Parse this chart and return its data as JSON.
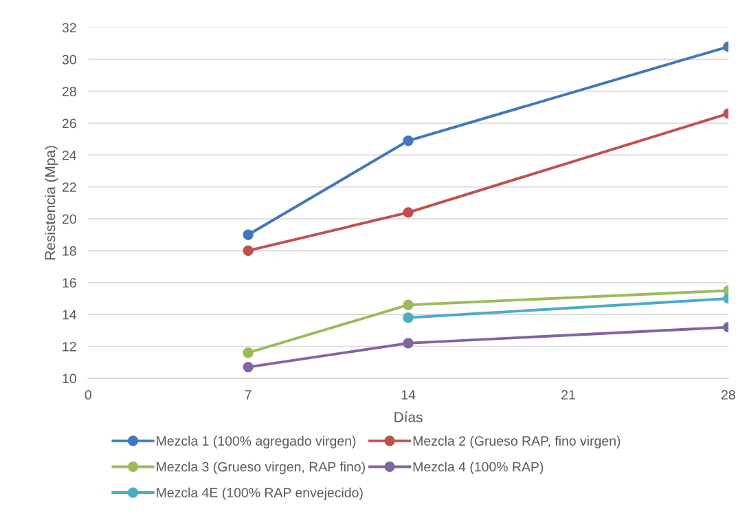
{
  "chart_data": {
    "type": "line",
    "xlabel": "Días",
    "ylabel": "Resistencia (Mpa)",
    "xlim": [
      0,
      28
    ],
    "xticks": [
      0,
      7,
      14,
      21,
      28
    ],
    "ylim": [
      10,
      32
    ],
    "yticks": [
      10,
      12,
      14,
      16,
      18,
      20,
      22,
      24,
      26,
      28,
      30,
      32
    ],
    "grid": "y",
    "legend": "bottom",
    "marker": "circle",
    "line_style": "solid",
    "series": [
      {
        "name": "Mezcla 1 (100% agregado virgen)",
        "color": "#4077bd",
        "x": [
          7,
          14,
          28
        ],
        "values": [
          19.0,
          24.9,
          30.8
        ]
      },
      {
        "name": "Mezcla 2 (Grueso RAP, fino virgen)",
        "color": "#c0504d",
        "x": [
          7,
          14,
          28
        ],
        "values": [
          18.0,
          20.4,
          26.6
        ]
      },
      {
        "name": "Mezcla 3 (Grueso virgen, RAP fino)",
        "color": "#9bbb59",
        "x": [
          7,
          14,
          28
        ],
        "values": [
          11.6,
          14.6,
          15.5
        ]
      },
      {
        "name": "Mezcla 4 (100% RAP)",
        "color": "#8064a2",
        "x": [
          7,
          14,
          28
        ],
        "values": [
          10.7,
          12.2,
          13.2
        ]
      },
      {
        "name": "Mezcla 4E (100% RAP envejecido)",
        "color": "#4bacc6",
        "x": [
          14,
          28
        ],
        "values": [
          13.8,
          15.0
        ]
      }
    ]
  }
}
